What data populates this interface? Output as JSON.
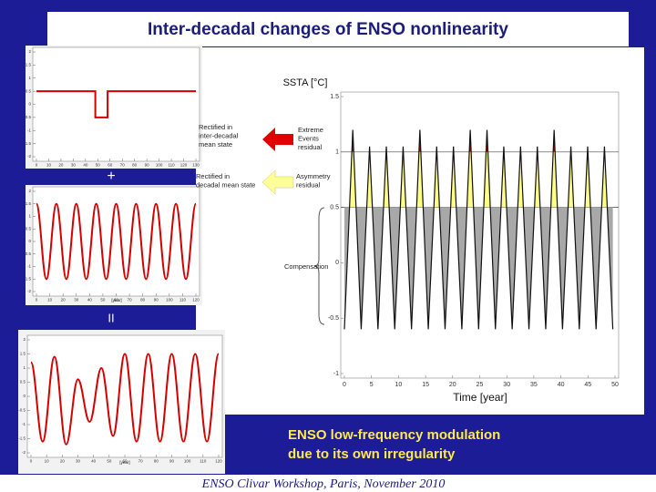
{
  "title": "Inter-decadal changes of ENSO nonlinearity",
  "operators": [
    "+",
    "II"
  ],
  "caption": [
    "ENSO low-frequency modulation",
    "due to its own irregularity"
  ],
  "footer": "ENSO Clivar Workshop, Paris, November 2010",
  "chart_data": [
    {
      "type": "line",
      "xlim": [
        0,
        130
      ],
      "xticks": [
        0,
        10,
        20,
        30,
        40,
        50,
        60,
        70,
        80,
        90,
        100,
        110,
        120,
        130
      ],
      "ylim": [
        -2,
        2
      ],
      "yticks": [
        2,
        1.5,
        1,
        0.5,
        0,
        -0.5,
        -1,
        -1.5,
        -2
      ],
      "series": [
        {
          "color": "#d40000",
          "x": [
            0,
            48,
            48,
            58,
            58,
            130
          ],
          "values": [
            0.5,
            0.5,
            -0.5,
            -0.5,
            0.5,
            0.5
          ]
        }
      ]
    },
    {
      "type": "line",
      "smooth": true,
      "xlabel": "[year]",
      "xlim": [
        0,
        120
      ],
      "xticks": [
        0,
        10,
        20,
        30,
        40,
        50,
        60,
        70,
        80,
        90,
        100,
        110,
        120
      ],
      "ylim": [
        -2,
        2
      ],
      "yticks": [
        2,
        1.5,
        1,
        0.5,
        0,
        -0.5,
        -1,
        -1.5,
        -2
      ],
      "series": [
        {
          "color": "#d40000",
          "x": [
            0,
            7.5,
            15,
            22.5,
            30,
            37.5,
            45,
            52.5,
            60,
            67.5,
            75,
            82.5,
            90,
            97.5,
            105,
            112.5,
            120
          ],
          "values": [
            1.5,
            -1.5,
            1.5,
            -1.5,
            1.5,
            -1.5,
            1.5,
            -1.5,
            1.5,
            -1.5,
            1.5,
            -1.5,
            1.5,
            -1.5,
            1.5,
            -1.5,
            1.5
          ]
        }
      ]
    },
    {
      "type": "line",
      "smooth": true,
      "xlabel": "[year]",
      "xlim": [
        0,
        120
      ],
      "xticks": [
        0,
        10,
        20,
        30,
        40,
        50,
        60,
        70,
        80,
        90,
        100,
        110,
        120
      ],
      "ylim": [
        -2,
        2
      ],
      "yticks": [
        2,
        1.5,
        1,
        0.5,
        0,
        -0.5,
        -1,
        -1.5,
        -2
      ],
      "series": [
        {
          "color": "#d40000",
          "x": [
            0,
            7.5,
            15,
            22.5,
            30,
            37.5,
            45,
            52.5,
            60,
            67.5,
            75,
            82.5,
            90,
            97.5,
            105,
            112.5,
            120
          ],
          "values": [
            1.2,
            -1.6,
            1.4,
            -1.7,
            0.6,
            -0.9,
            1.0,
            -1.4,
            1.5,
            -1.6,
            1.5,
            -1.6,
            1.5,
            -1.6,
            1.5,
            -1.6,
            1.5
          ]
        }
      ]
    },
    {
      "type": "line",
      "ylabel": "SSTA [°C]",
      "xlabel": "Time [year]",
      "xlim": [
        0,
        50
      ],
      "xticks": [
        0,
        5,
        10,
        15,
        20,
        25,
        30,
        35,
        40,
        45,
        50
      ],
      "ylim": [
        -1,
        1.5
      ],
      "yticks": [
        1.5,
        1,
        0.5,
        0,
        -0.5,
        -1
      ],
      "reference_lines": [
        1,
        0.5
      ],
      "fill_colors": {
        "extreme": "#cc1010",
        "asymmetry": "#ffff88",
        "compensation": "#a8a8a8"
      },
      "annotations": [
        [
          "Rectified in",
          "inter-decadal",
          "mean state"
        ],
        [
          "Extreme",
          "Events",
          "residual"
        ],
        [
          "Rectified in",
          "decadal mean state"
        ],
        [
          "Asymmetry",
          "residual"
        ],
        [
          "Compensation"
        ]
      ],
      "series": [
        {
          "color": "#111111",
          "x": [
            0,
            1.55,
            3.1,
            4.65,
            6.2,
            7.75,
            9.3,
            10.85,
            12.4,
            13.95,
            15.5,
            17.05,
            18.6,
            20.15,
            21.7,
            23.25,
            24.8,
            26.35,
            27.9,
            29.45,
            31.0,
            32.55,
            34.1,
            35.65,
            37.2,
            38.75,
            40.3,
            41.85,
            43.4,
            44.95,
            46.5,
            48.05,
            49.6
          ],
          "values": [
            -0.6,
            1.2,
            -0.6,
            1.05,
            -0.6,
            1.05,
            -0.6,
            1.05,
            -0.6,
            1.2,
            -0.6,
            1.05,
            -0.6,
            1.05,
            -0.6,
            1.2,
            -0.6,
            1.2,
            -0.6,
            1.05,
            -0.6,
            1.05,
            -0.6,
            1.05,
            -0.6,
            1.2,
            -0.6,
            1.05,
            -0.6,
            1.05,
            -0.6,
            1.05,
            -0.6
          ]
        }
      ]
    }
  ]
}
